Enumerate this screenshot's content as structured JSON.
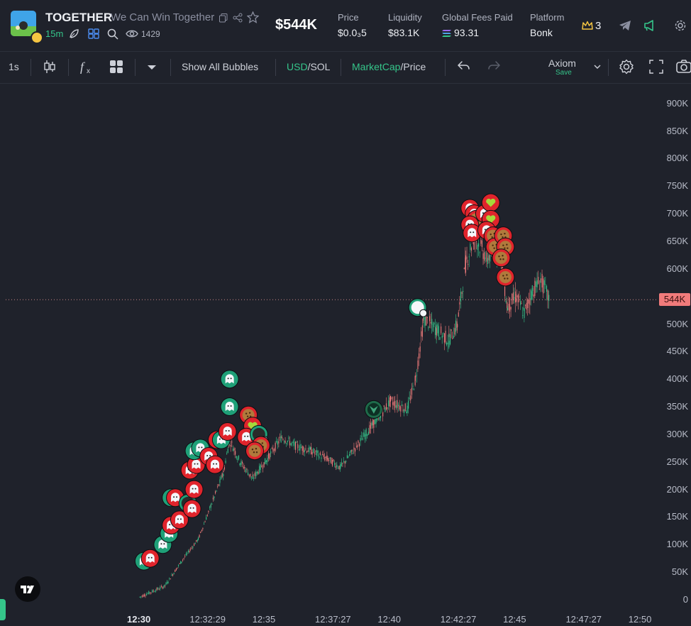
{
  "header": {
    "title": "TOGETHER",
    "subtitle": "We Can Win Together",
    "age": "15m",
    "viewers": "1429",
    "market_cap": "$544K",
    "stats": [
      {
        "label": "Price",
        "value": "$0.0₃5"
      },
      {
        "label": "Liquidity",
        "value": "$83.1K"
      },
      {
        "label": "Global Fees Paid",
        "value": "93.31"
      },
      {
        "label": "Platform",
        "value": "Bonk"
      }
    ],
    "crown_count": "3",
    "icons": [
      "copy-icon",
      "share-icon",
      "star-icon",
      "leaf-icon",
      "bundle-icon",
      "search-icon",
      "eye-icon",
      "crown-icon",
      "telegram-icon",
      "megaphone-icon",
      "gear-icon"
    ]
  },
  "toolbar": {
    "interval": "1s",
    "show_bubbles": "Show All Bubbles",
    "currency_active": "USD",
    "currency_other": "/SOL",
    "metric_active": "MarketCap",
    "metric_other": "/Price",
    "preset_name": "Axiom",
    "preset_status": "Save",
    "icons": [
      "candles-icon",
      "indicators-icon",
      "layout-icon",
      "dropdown-icon",
      "undo-icon",
      "redo-icon",
      "chevron-down-icon",
      "settings-icon",
      "fullscreen-icon",
      "camera-icon"
    ]
  },
  "chart_data": {
    "type": "candlestick",
    "title": "",
    "ylabel": "",
    "xlabel": "",
    "y_ticks": [
      "900K",
      "850K",
      "800K",
      "750K",
      "700K",
      "650K",
      "600K",
      "550K",
      "500K",
      "450K",
      "400K",
      "350K",
      "300K",
      "250K",
      "200K",
      "150K",
      "100K",
      "50K",
      "0"
    ],
    "x_ticks": [
      "12:30",
      "12:32:29",
      "12:35",
      "12:37:27",
      "12:40",
      "12:42:27",
      "12:45",
      "12:47:27",
      "12:50"
    ],
    "current_value_label": "544K",
    "ylim": [
      0,
      900000
    ],
    "market_cap_path": [
      {
        "t": "12:30:00",
        "v": 5000
      },
      {
        "t": "12:31:00",
        "v": 25000
      },
      {
        "t": "12:31:40",
        "v": 70000
      },
      {
        "t": "12:32:20",
        "v": 110000
      },
      {
        "t": "12:32:50",
        "v": 170000
      },
      {
        "t": "12:33:20",
        "v": 230000
      },
      {
        "t": "12:33:35",
        "v": 290000
      },
      {
        "t": "12:34:00",
        "v": 250000
      },
      {
        "t": "12:34:30",
        "v": 220000
      },
      {
        "t": "12:35:00",
        "v": 250000
      },
      {
        "t": "12:35:40",
        "v": 295000
      },
      {
        "t": "12:36:10",
        "v": 280000
      },
      {
        "t": "12:36:50",
        "v": 270000
      },
      {
        "t": "12:37:30",
        "v": 255000
      },
      {
        "t": "12:38:00",
        "v": 240000
      },
      {
        "t": "12:38:40",
        "v": 280000
      },
      {
        "t": "12:39:20",
        "v": 320000
      },
      {
        "t": "12:40:00",
        "v": 360000
      },
      {
        "t": "12:40:40",
        "v": 345000
      },
      {
        "t": "12:41:00",
        "v": 400000
      },
      {
        "t": "12:41:20",
        "v": 510000
      },
      {
        "t": "12:41:50",
        "v": 490000
      },
      {
        "t": "12:42:20",
        "v": 470000
      },
      {
        "t": "12:42:40",
        "v": 500000
      },
      {
        "t": "12:43:00",
        "v": 610000
      },
      {
        "t": "12:43:20",
        "v": 660000
      },
      {
        "t": "12:43:50",
        "v": 620000
      },
      {
        "t": "12:44:20",
        "v": 640000
      },
      {
        "t": "12:44:40",
        "v": 530000
      },
      {
        "t": "12:45:00",
        "v": 550000
      },
      {
        "t": "12:45:20",
        "v": 520000
      },
      {
        "t": "12:45:40",
        "v": 560000
      },
      {
        "t": "12:46:00",
        "v": 580000
      },
      {
        "t": "12:46:20",
        "v": 544000
      }
    ],
    "bubbles": [
      {
        "kind": "buy",
        "t": "12:30:10",
        "v": 70000
      },
      {
        "kind": "sell",
        "t": "12:30:25",
        "v": 75000
      },
      {
        "kind": "buy",
        "t": "12:30:55",
        "v": 100000
      },
      {
        "kind": "buy",
        "t": "12:31:10",
        "v": 120000
      },
      {
        "kind": "sell",
        "t": "12:31:15",
        "v": 135000
      },
      {
        "kind": "sell",
        "t": "12:31:35",
        "v": 145000
      },
      {
        "kind": "buy",
        "t": "12:31:15",
        "v": 185000
      },
      {
        "kind": "sell",
        "t": "12:31:25",
        "v": 185000
      },
      {
        "kind": "avatar",
        "t": "12:31:55",
        "v": 175000
      },
      {
        "kind": "sell",
        "t": "12:32:05",
        "v": 165000
      },
      {
        "kind": "sell",
        "t": "12:32:10",
        "v": 200000
      },
      {
        "kind": "sell",
        "t": "12:32:00",
        "v": 235000
      },
      {
        "kind": "sell",
        "t": "12:32:15",
        "v": 245000
      },
      {
        "kind": "buy",
        "t": "12:32:10",
        "v": 270000
      },
      {
        "kind": "buy",
        "t": "12:32:25",
        "v": 275000
      },
      {
        "kind": "sell",
        "t": "12:32:45",
        "v": 260000
      },
      {
        "kind": "sell",
        "t": "12:33:00",
        "v": 245000
      },
      {
        "kind": "sell",
        "t": "12:33:05",
        "v": 290000
      },
      {
        "kind": "buy",
        "t": "12:33:15",
        "v": 290000
      },
      {
        "kind": "sell",
        "t": "12:33:30",
        "v": 305000
      },
      {
        "kind": "buy",
        "t": "12:33:35",
        "v": 350000
      },
      {
        "kind": "buy",
        "t": "12:33:35",
        "v": 400000
      },
      {
        "kind": "cookie",
        "t": "12:34:20",
        "v": 335000
      },
      {
        "kind": "heart",
        "t": "12:34:30",
        "v": 315000
      },
      {
        "kind": "sell",
        "t": "12:34:15",
        "v": 295000
      },
      {
        "kind": "avatar",
        "t": "12:34:45",
        "v": 300000
      },
      {
        "kind": "cookie",
        "t": "12:34:50",
        "v": 280000
      },
      {
        "kind": "cookie",
        "t": "12:34:35",
        "v": 270000
      },
      {
        "kind": "fox",
        "t": "12:39:20",
        "v": 345000
      },
      {
        "kind": "penguin",
        "t": "12:41:05",
        "v": 530000
      },
      {
        "kind": "sell",
        "t": "12:43:10",
        "v": 710000
      },
      {
        "kind": "sell",
        "t": "12:43:20",
        "v": 700000
      },
      {
        "kind": "cookie",
        "t": "12:43:25",
        "v": 690000
      },
      {
        "kind": "sell",
        "t": "12:43:10",
        "v": 680000
      },
      {
        "kind": "sell",
        "t": "12:43:15",
        "v": 665000
      },
      {
        "kind": "sell",
        "t": "12:43:45",
        "v": 700000
      },
      {
        "kind": "heart",
        "t": "12:44:00",
        "v": 720000
      },
      {
        "kind": "heart",
        "t": "12:44:00",
        "v": 690000
      },
      {
        "kind": "sell",
        "t": "12:43:50",
        "v": 670000
      },
      {
        "kind": "cookie",
        "t": "12:44:05",
        "v": 660000
      },
      {
        "kind": "cookie",
        "t": "12:44:10",
        "v": 640000
      },
      {
        "kind": "cookie",
        "t": "12:44:30",
        "v": 660000
      },
      {
        "kind": "cookie",
        "t": "12:44:35",
        "v": 640000
      },
      {
        "kind": "cookie",
        "t": "12:44:25",
        "v": 620000
      },
      {
        "kind": "cookie",
        "t": "12:44:35",
        "v": 585000
      }
    ],
    "colors": {
      "up": "#35c58a",
      "down": "#f07b7b",
      "buy_bubble": "#1fa078",
      "sell_bubble": "#e0242c",
      "accent": "#35c58a",
      "background": "#1f222b"
    }
  }
}
